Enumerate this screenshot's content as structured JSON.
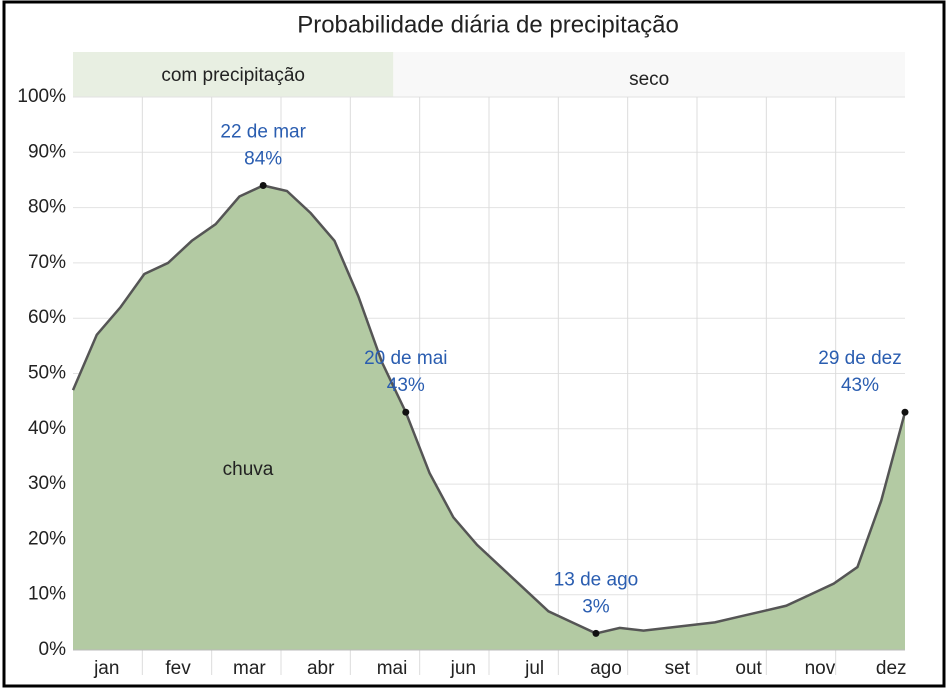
{
  "chart_data": {
    "type": "area",
    "title": "Probabilidade diária de precipitação",
    "seasons": [
      {
        "name": "com precipitação"
      },
      {
        "name": "seco"
      }
    ],
    "area_label": "chuva",
    "categories": [
      null,
      "jan",
      null,
      null,
      "fev",
      null,
      null,
      "mar",
      null,
      null,
      "abr",
      null,
      null,
      "mai",
      null,
      null,
      "jun",
      null,
      null,
      "jul",
      null,
      null,
      "ago",
      null,
      null,
      "set",
      null,
      null,
      "out",
      null,
      null,
      "nov",
      null,
      null,
      "dez",
      null
    ],
    "series": [
      {
        "name": "chuva",
        "color": "#b3caa3",
        "line_color": "#555555",
        "values": [
          47,
          57,
          62,
          68,
          70,
          74,
          77,
          82,
          84,
          83,
          79,
          74,
          64,
          52,
          43,
          32,
          24,
          19,
          15,
          11,
          7,
          5,
          3,
          4,
          3.5,
          4,
          4.5,
          5,
          6,
          7,
          8,
          10,
          12,
          15,
          27,
          43
        ],
        "point_labels": [
          null,
          null,
          null,
          null,
          null,
          null,
          null,
          null,
          "22 de mar",
          null,
          null,
          null,
          null,
          null,
          "20 de mai",
          null,
          null,
          null,
          null,
          null,
          null,
          null,
          "13 de ago",
          null,
          null,
          null,
          null,
          null,
          null,
          null,
          null,
          null,
          null,
          null,
          null,
          "29 de dez"
        ],
        "value_labels": [
          null,
          null,
          null,
          null,
          null,
          null,
          null,
          null,
          "84%",
          null,
          null,
          null,
          null,
          null,
          "43%",
          null,
          null,
          null,
          null,
          null,
          null,
          null,
          "3%",
          null,
          null,
          null,
          null,
          null,
          null,
          null,
          null,
          null,
          null,
          null,
          null,
          "43%"
        ]
      }
    ],
    "ylim": [
      0,
      100
    ],
    "yticks": [
      {
        "value": 0,
        "label": "0%"
      },
      {
        "value": 10,
        "label": "10%"
      },
      {
        "value": 20,
        "label": "20%"
      },
      {
        "value": 30,
        "label": "30%"
      },
      {
        "value": 40,
        "label": "40%"
      },
      {
        "value": 50,
        "label": "50%"
      },
      {
        "value": 60,
        "label": "60%"
      },
      {
        "value": 70,
        "label": "70%"
      },
      {
        "value": 80,
        "label": "80%"
      },
      {
        "value": 90,
        "label": "90%"
      },
      {
        "value": 100,
        "label": "100%"
      }
    ],
    "grid": true
  }
}
